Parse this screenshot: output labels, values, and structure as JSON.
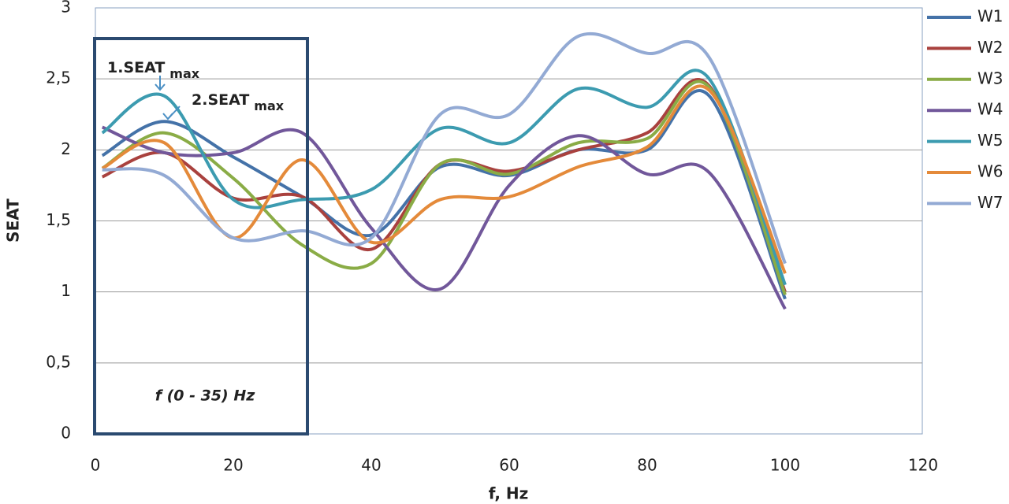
{
  "chart_data": {
    "type": "line",
    "x_label": "f, Hz",
    "y_label": "SEAT",
    "annotations": [
      {
        "text": "1.SEAT",
        "sub": "max"
      },
      {
        "text": "2.SEAT",
        "sub": "max"
      },
      {
        "text": "f (0 - 35) Hz"
      }
    ],
    "x": [
      1,
      10,
      20,
      30,
      40,
      50,
      60,
      70,
      80,
      89,
      100
    ],
    "series": [
      {
        "name": "W1",
        "color": "#4472a8",
        "values": [
          1.96,
          2.2,
          1.95,
          1.67,
          1.4,
          1.88,
          1.82,
          2.0,
          2.0,
          2.38,
          0.95
        ]
      },
      {
        "name": "W2",
        "color": "#a9413e",
        "values": [
          1.81,
          1.98,
          1.66,
          1.67,
          1.3,
          1.9,
          1.85,
          2.0,
          2.12,
          2.45,
          1.0
        ]
      },
      {
        "name": "W3",
        "color": "#8aac46",
        "values": [
          1.87,
          2.12,
          1.8,
          1.33,
          1.2,
          1.9,
          1.83,
          2.05,
          2.08,
          2.44,
          0.98
        ]
      },
      {
        "name": "W4",
        "color": "#71579a",
        "values": [
          2.16,
          1.98,
          1.98,
          2.12,
          1.45,
          1.02,
          1.75,
          2.1,
          1.83,
          1.84,
          0.88
        ]
      },
      {
        "name": "W5",
        "color": "#3c9bb0",
        "values": [
          2.12,
          2.38,
          1.65,
          1.65,
          1.72,
          2.15,
          2.05,
          2.43,
          2.3,
          2.5,
          1.05
        ]
      },
      {
        "name": "W6",
        "color": "#e48a3a",
        "values": [
          1.87,
          2.05,
          1.38,
          1.93,
          1.35,
          1.65,
          1.67,
          1.88,
          2.02,
          2.42,
          1.13
        ]
      },
      {
        "name": "W7",
        "color": "#93aad4",
        "values": [
          1.86,
          1.82,
          1.38,
          1.43,
          1.38,
          2.25,
          2.25,
          2.8,
          2.68,
          2.65,
          1.2
        ]
      }
    ],
    "xlim": [
      0,
      120
    ],
    "xticks": [
      0,
      20,
      40,
      60,
      80,
      100,
      120
    ],
    "ylim": [
      0,
      3
    ],
    "yticks": [
      0,
      {
        "value": 0.5,
        "label": "0,5"
      },
      1,
      {
        "value": 1.5,
        "label": "1,5"
      },
      2,
      {
        "value": 2.5,
        "label": "2,5"
      },
      3
    ],
    "grid": true,
    "legend": "right"
  }
}
